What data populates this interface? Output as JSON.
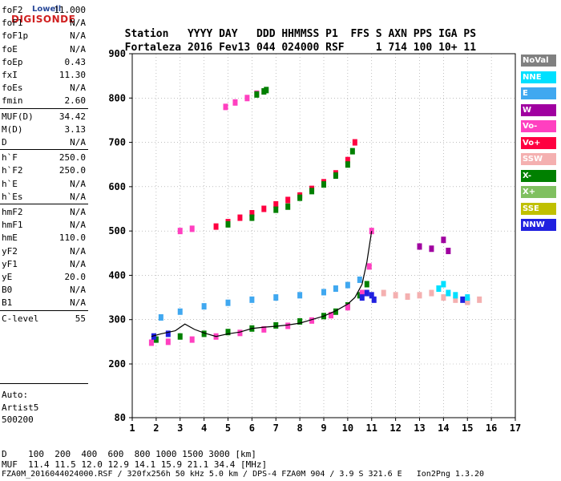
{
  "logo": {
    "top": "Lowell",
    "main": "DIGISONDE"
  },
  "header": {
    "labels": [
      "Station",
      "YYYY DAY",
      "DDD",
      "HHMMSS",
      "P1",
      "FFS",
      "S",
      "AXN",
      "PPS",
      "IGA",
      "PS"
    ],
    "values": [
      "Fortaleza",
      "2016 Fev13",
      "044",
      "024000",
      "RSF",
      "1",
      "714",
      "100",
      "10+",
      "11"
    ]
  },
  "params": [
    {
      "name": "foF2",
      "value": "11.000"
    },
    {
      "name": "foF1",
      "value": "N/A"
    },
    {
      "name": "foF1p",
      "value": "N/A"
    },
    {
      "name": "foE",
      "value": "N/A"
    },
    {
      "name": "foEp",
      "value": "0.43"
    },
    {
      "name": "fxI",
      "value": "11.30"
    },
    {
      "name": "foEs",
      "value": "N/A"
    },
    {
      "name": "fmin",
      "value": "2.60"
    },
    {
      "name": "MUF(D)",
      "value": "34.42"
    },
    {
      "name": "M(D)",
      "value": "3.13"
    },
    {
      "name": "D",
      "value": "N/A"
    },
    {
      "name": "h`F",
      "value": "250.0"
    },
    {
      "name": "h`F2",
      "value": "250.0"
    },
    {
      "name": "h`E",
      "value": "N/A"
    },
    {
      "name": "h`Es",
      "value": "N/A"
    },
    {
      "name": "hmF2",
      "value": "N/A"
    },
    {
      "name": "hmF1",
      "value": "N/A"
    },
    {
      "name": "hmE",
      "value": "110.0"
    },
    {
      "name": "yF2",
      "value": "N/A"
    },
    {
      "name": "yF1",
      "value": "N/A"
    },
    {
      "name": "yE",
      "value": "20.0"
    },
    {
      "name": "B0",
      "value": "N/A"
    },
    {
      "name": "B1",
      "value": "N/A"
    },
    {
      "name": "C-level",
      "value": "55"
    }
  ],
  "auto": {
    "line1": "Auto:",
    "line2": "Artist5",
    "line3": "500200"
  },
  "legend": [
    {
      "label": "NoVal",
      "color": "#808080"
    },
    {
      "label": "NNE",
      "color": "#00e0ff"
    },
    {
      "label": "E",
      "color": "#40a8f0"
    },
    {
      "label": "W",
      "color": "#a000a0"
    },
    {
      "label": "Vo-",
      "color": "#ff40c0"
    },
    {
      "label": "Vo+",
      "color": "#ff0040"
    },
    {
      "label": "SSW",
      "color": "#f4b0b0"
    },
    {
      "label": "X-",
      "color": "#008000"
    },
    {
      "label": "X+",
      "color": "#80c060"
    },
    {
      "label": "SSE",
      "color": "#c0c000"
    },
    {
      "label": "NNW",
      "color": "#2020e0"
    }
  ],
  "footer": {
    "d_label": "D",
    "d_values": "100  200  400  600  800 1000 1500 3000 [km]",
    "muf_label": "MUF",
    "muf_values": "11.4 11.5 12.0 12.9 14.1 15.9 21.1 34.4 [MHz]",
    "info": "FZA0M_2016044024000.RSF / 320fx256h 50 kHz 5.0 km / DPS-4 FZA0M 904 / 3.9 S 321.6 E   Ion2Png 1.3.20"
  },
  "chart_data": {
    "type": "scatter",
    "xlim": [
      1,
      17
    ],
    "ylim": [
      80,
      900
    ],
    "xticks": [
      "1",
      "2",
      "3",
      "4",
      "5",
      "6",
      "7",
      "8",
      "9",
      "10",
      "11",
      "12",
      "13",
      "14",
      "15",
      "16",
      "17"
    ],
    "yticks": [
      "80",
      "200",
      "300",
      "400",
      "500",
      "600",
      "700",
      "800",
      "900"
    ],
    "grid": true,
    "series": [
      {
        "color_key": "X-",
        "points": [
          [
            2,
            255
          ],
          [
            3,
            262
          ],
          [
            4,
            268
          ],
          [
            5,
            272
          ],
          [
            6,
            280
          ],
          [
            7,
            287
          ],
          [
            8,
            296
          ],
          [
            9,
            308
          ],
          [
            9.5,
            318
          ],
          [
            10,
            332
          ],
          [
            10.5,
            355
          ],
          [
            10.8,
            380
          ]
        ]
      },
      {
        "color_key": "Vo-",
        "points": [
          [
            1.8,
            248
          ],
          [
            2.5,
            250
          ],
          [
            3.5,
            255
          ],
          [
            4.5,
            262
          ],
          [
            5.5,
            270
          ],
          [
            6.5,
            278
          ],
          [
            7.5,
            286
          ],
          [
            8.5,
            298
          ],
          [
            9.3,
            310
          ],
          [
            10,
            328
          ],
          [
            10.6,
            360
          ],
          [
            10.9,
            420
          ],
          [
            11,
            500
          ]
        ]
      },
      {
        "color_key": "E",
        "points": [
          [
            2.2,
            305
          ],
          [
            3,
            318
          ],
          [
            4,
            330
          ],
          [
            5,
            338
          ],
          [
            6,
            345
          ],
          [
            7,
            350
          ],
          [
            8,
            355
          ],
          [
            9,
            362
          ],
          [
            9.5,
            370
          ],
          [
            10,
            378
          ],
          [
            10.5,
            390
          ]
        ]
      },
      {
        "color_key": "NNW",
        "points": [
          [
            1.9,
            262
          ],
          [
            2.5,
            268
          ],
          [
            10.6,
            350
          ],
          [
            10.8,
            360
          ],
          [
            11,
            355
          ],
          [
            11.1,
            345
          ],
          [
            14.8,
            345
          ],
          [
            15,
            342
          ]
        ]
      },
      {
        "color_key": "SSW",
        "points": [
          [
            11.5,
            360
          ],
          [
            12,
            355
          ],
          [
            12.5,
            352
          ],
          [
            13,
            355
          ],
          [
            13.5,
            360
          ],
          [
            14,
            350
          ],
          [
            14.5,
            345
          ],
          [
            15,
            340
          ],
          [
            15.5,
            345
          ]
        ]
      },
      {
        "color_key": "NNE",
        "points": [
          [
            13.8,
            370
          ],
          [
            14,
            380
          ],
          [
            14.2,
            360
          ],
          [
            14.5,
            355
          ],
          [
            15,
            350
          ]
        ]
      },
      {
        "color_key": "W",
        "points": [
          [
            13,
            465
          ],
          [
            13.5,
            460
          ],
          [
            14,
            480
          ],
          [
            14.2,
            455
          ]
        ]
      },
      {
        "color_key": "Vo+",
        "points": [
          [
            4.5,
            510
          ],
          [
            5,
            520
          ],
          [
            5.5,
            530
          ],
          [
            6,
            540
          ],
          [
            6.5,
            550
          ],
          [
            7,
            560
          ],
          [
            7.5,
            570
          ],
          [
            8,
            580
          ],
          [
            8.5,
            595
          ],
          [
            9,
            610
          ],
          [
            9.5,
            630
          ],
          [
            10,
            660
          ],
          [
            10.3,
            700
          ]
        ]
      },
      {
        "color_key": "X-",
        "points": [
          [
            5,
            515
          ],
          [
            6,
            530
          ],
          [
            7,
            548
          ],
          [
            7.5,
            555
          ],
          [
            8,
            575
          ],
          [
            8.5,
            590
          ],
          [
            9,
            605
          ],
          [
            9.5,
            625
          ],
          [
            10,
            650
          ],
          [
            10.2,
            680
          ]
        ]
      },
      {
        "color_key": "Vo-",
        "points": [
          [
            3,
            500
          ],
          [
            3.5,
            505
          ],
          [
            4.9,
            780
          ],
          [
            5.3,
            790
          ],
          [
            5.8,
            800
          ],
          [
            6.2,
            810
          ],
          [
            6.5,
            815
          ]
        ]
      },
      {
        "color_key": "X-",
        "points": [
          [
            6.2,
            808
          ],
          [
            6.5,
            815
          ],
          [
            6.6,
            818
          ]
        ]
      }
    ],
    "trace": [
      [
        1.8,
        262
      ],
      [
        2.2,
        268
      ],
      [
        2.8,
        275
      ],
      [
        3.2,
        290
      ],
      [
        3.6,
        278
      ],
      [
        4,
        270
      ],
      [
        4.5,
        262
      ],
      [
        5,
        268
      ],
      [
        5.5,
        272
      ],
      [
        6,
        280
      ],
      [
        6.5,
        283
      ],
      [
        7,
        285
      ],
      [
        7.5,
        288
      ],
      [
        8,
        292
      ],
      [
        8.5,
        300
      ],
      [
        9,
        308
      ],
      [
        9.5,
        320
      ],
      [
        10,
        335
      ],
      [
        10.3,
        350
      ],
      [
        10.6,
        380
      ],
      [
        10.8,
        430
      ],
      [
        11,
        500
      ]
    ]
  }
}
